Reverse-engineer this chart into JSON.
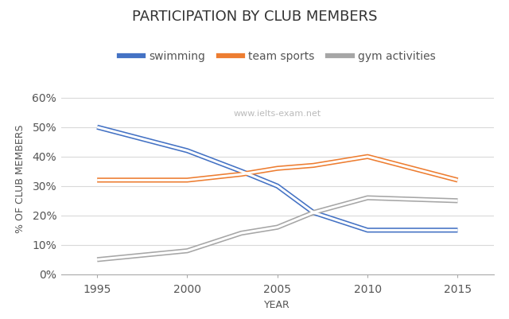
{
  "title": "PARTICIPATION BY CLUB MEMBERS",
  "xlabel": "YEAR",
  "ylabel": "% OF CLUB MEMBERS",
  "watermark": "www.ielts-exam.net",
  "years": [
    1995,
    2000,
    2003,
    2005,
    2007,
    2010,
    2015
  ],
  "swimming": [
    50,
    42,
    35,
    30,
    21,
    15,
    15
  ],
  "team_sports": [
    32,
    32,
    34,
    36,
    37,
    40,
    32
  ],
  "gym_activities": [
    5,
    8,
    14,
    16,
    21,
    26,
    25
  ],
  "swimming_color": "#4472C4",
  "team_sports_color": "#ED7D31",
  "gym_activities_color": "#A6A6A6",
  "ylim": [
    0,
    65
  ],
  "yticks": [
    0,
    10,
    20,
    30,
    40,
    50,
    60
  ],
  "ytick_labels": [
    "0%",
    "10%",
    "20%",
    "30%",
    "40%",
    "50%",
    "60%"
  ],
  "xticks": [
    1995,
    2000,
    2005,
    2010,
    2015
  ],
  "bg_color": "#FFFFFF",
  "grid_color": "#D9D9D9",
  "legend_labels": [
    "swimming",
    "team sports",
    "gym activities"
  ],
  "title_fontsize": 13,
  "axis_label_fontsize": 9,
  "tick_fontsize": 10,
  "legend_fontsize": 10
}
